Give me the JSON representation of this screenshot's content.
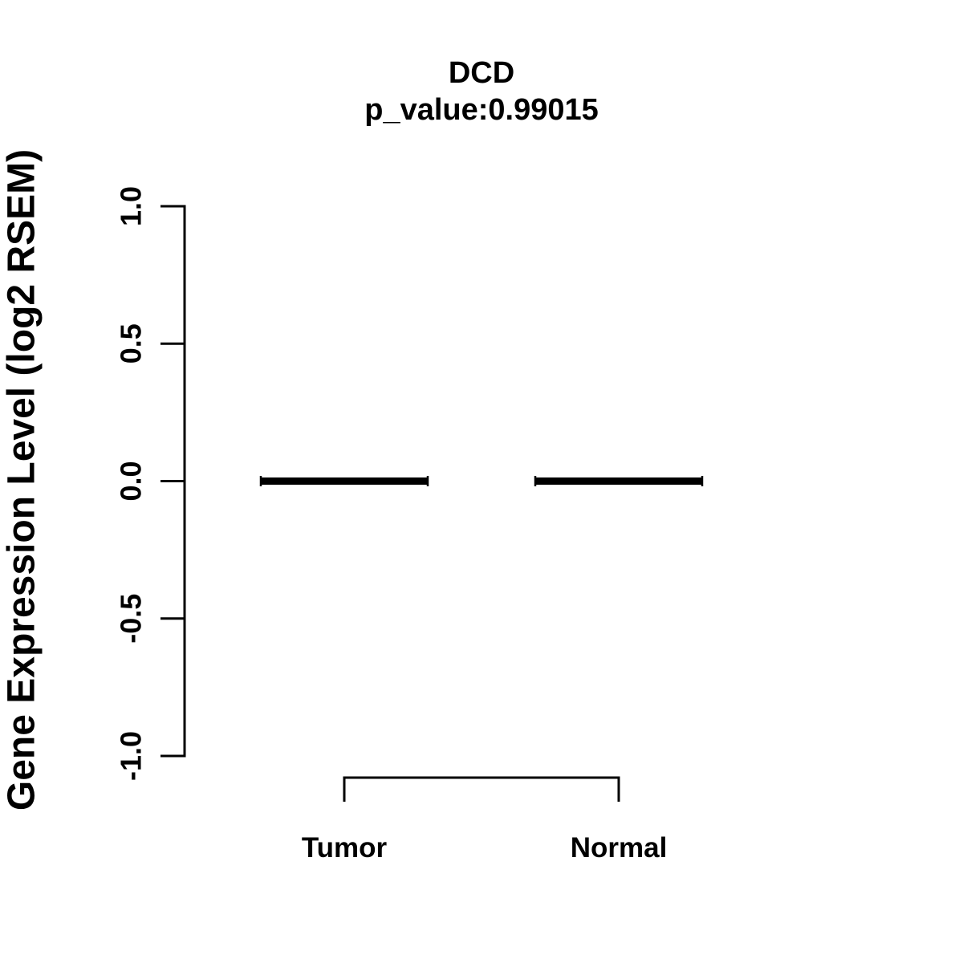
{
  "page": {
    "background_color": "#ffffff",
    "foreground_color": "#000000"
  },
  "chart_data": {
    "type": "boxplot",
    "title": "DCD",
    "subtitle": "p_value:0.99015",
    "p_value": 0.99015,
    "gene": "DCD",
    "ylabel": "Gene Expression Level (log2 RSEM)",
    "categories": [
      "Tumor",
      "Normal"
    ],
    "series": [
      {
        "name": "Tumor",
        "median": 0.0,
        "q1": 0.0,
        "q3": 0.0,
        "whisker_low": 0.0,
        "whisker_high": 0.0
      },
      {
        "name": "Normal",
        "median": 0.0,
        "q1": 0.0,
        "q3": 0.0,
        "whisker_low": 0.0,
        "whisker_high": 0.0
      }
    ],
    "ylim": [
      -1.0,
      1.0
    ],
    "yticks": [
      1.0,
      0.5,
      0.0,
      -0.5,
      -1.0
    ],
    "ytick_labels": [
      "1.0",
      "0.5",
      "0.0",
      "-0.5",
      "-1.0"
    ],
    "grid": false,
    "legend": false,
    "comparison_bracket": {
      "between": [
        "Tumor",
        "Normal"
      ]
    },
    "stroke_color": "#000000"
  }
}
